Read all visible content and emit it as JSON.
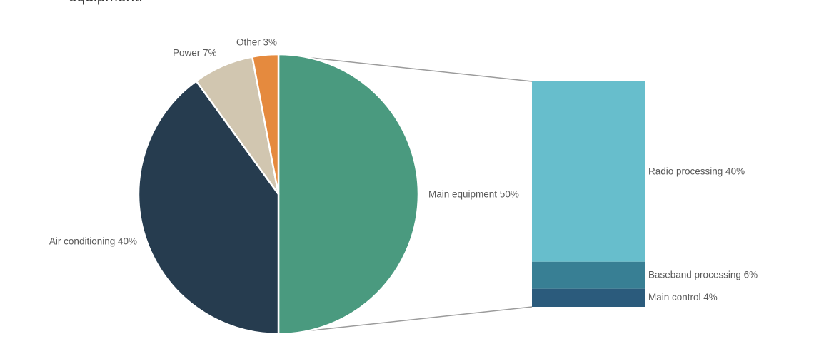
{
  "caption": "equipment.",
  "chart_data": [
    {
      "type": "pie",
      "categories": [
        "Main equipment",
        "Air conditioning",
        "Power",
        "Other"
      ],
      "values": [
        50,
        40,
        7,
        3
      ],
      "labels": [
        "Main equipment 50%",
        "Air conditioning 40%",
        "Power 7%",
        "Other 3%"
      ],
      "colors": [
        "#4a9a7f",
        "#263c4f",
        "#d1c6b0",
        "#e58a3e"
      ]
    },
    {
      "type": "bar",
      "stacked": true,
      "categories": [
        "Radio processing",
        "Baseband processing",
        "Main control"
      ],
      "values": [
        40,
        6,
        4
      ],
      "labels": [
        "Radio processing 40%",
        "Baseband processing 6%",
        "Main control 4%"
      ],
      "colors": [
        "#67becc",
        "#387f94",
        "#2b5b7c"
      ]
    }
  ]
}
